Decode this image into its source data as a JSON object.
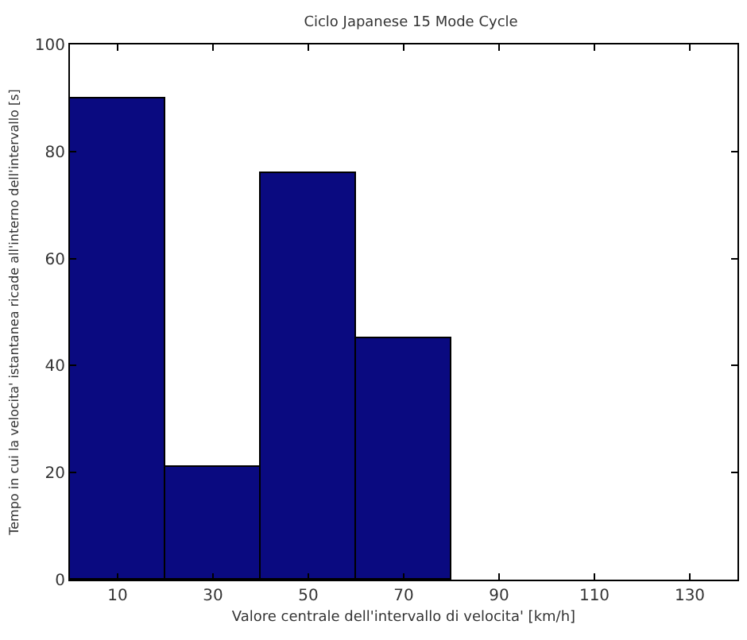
{
  "chart_data": {
    "type": "histogram",
    "title": "Ciclo Japanese 15 Mode Cycle",
    "xlabel": "Valore centrale dell'intervallo di velocita' [km/h]",
    "ylabel": "Tempo in cui la velocita' istantanea ricade all'interno dell'intervallo [s]",
    "bins": [
      0,
      20,
      40,
      60,
      80
    ],
    "values": [
      90,
      21,
      76,
      45
    ],
    "color": "#0a0a80",
    "xlim": [
      0,
      140
    ],
    "xticks": [
      10,
      30,
      50,
      70,
      90,
      110,
      130
    ],
    "ylim": [
      0,
      100
    ],
    "yticks": [
      0,
      20,
      40,
      60,
      80,
      100
    ]
  }
}
